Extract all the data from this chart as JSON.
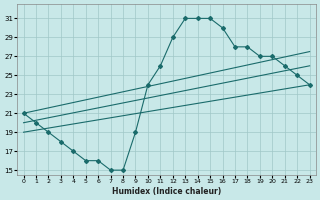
{
  "xlabel": "Humidex (Indice chaleur)",
  "bg_color": "#c8e8e8",
  "grid_color": "#a0c8c8",
  "line_color": "#1a6b6b",
  "xlim": [
    -0.5,
    23.5
  ],
  "ylim": [
    14.5,
    32.5
  ],
  "xticks": [
    0,
    1,
    2,
    3,
    4,
    5,
    6,
    7,
    8,
    9,
    10,
    11,
    12,
    13,
    14,
    15,
    16,
    17,
    18,
    19,
    20,
    21,
    22,
    23
  ],
  "yticks": [
    15,
    17,
    19,
    21,
    23,
    25,
    27,
    29,
    31
  ],
  "curve_x": [
    0,
    1,
    2,
    3,
    4,
    5,
    6,
    7,
    8,
    9,
    10,
    11,
    12,
    13,
    14,
    15,
    16,
    17,
    18,
    19,
    20,
    21,
    22,
    23
  ],
  "curve_y": [
    21,
    20,
    19,
    18,
    17,
    16,
    16,
    15,
    15,
    19,
    24,
    26,
    29,
    31,
    31,
    31,
    30,
    28,
    28,
    27,
    27,
    26,
    25,
    24
  ],
  "line1_x": [
    0,
    23
  ],
  "line1_y": [
    21,
    27.5
  ],
  "line2_x": [
    0,
    23
  ],
  "line2_y": [
    20,
    26
  ],
  "line3_x": [
    0,
    23
  ],
  "line3_y": [
    19,
    24
  ]
}
